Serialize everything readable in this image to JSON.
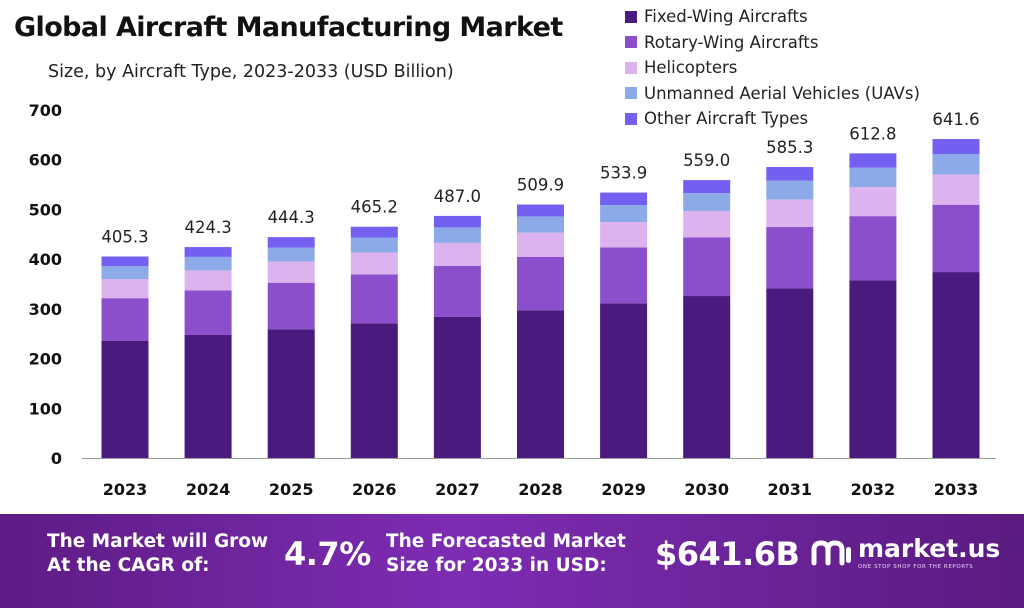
{
  "header": {
    "title": "Global Aircraft Manufacturing Market",
    "subtitle": "Size, by Aircraft Type, 2023-2033 (USD Billion)"
  },
  "chart_data": {
    "type": "bar",
    "stacked": true,
    "title": "Global Aircraft Manufacturing Market",
    "subtitle": "Size, by Aircraft Type, 2023-2033 (USD Billion)",
    "xlabel": "",
    "ylabel": "",
    "ylim": [
      0,
      700
    ],
    "yticks": [
      "0",
      "100",
      "200",
      "300",
      "400",
      "500",
      "600",
      "700"
    ],
    "grid": false,
    "legend_position": "top-right",
    "categories": [
      "2023",
      "2024",
      "2025",
      "2026",
      "2027",
      "2028",
      "2029",
      "2030",
      "2031",
      "2032",
      "2033"
    ],
    "series": [
      {
        "name": "Fixed-Wing Aircrafts",
        "color": "#4b1a7e",
        "values": [
          236.0,
          247.5,
          259.0,
          271.0,
          283.7,
          297.2,
          311.2,
          325.8,
          341.1,
          357.2,
          374.0
        ]
      },
      {
        "name": "Rotary-Wing Aircrafts",
        "color": "#8c4fcb",
        "values": [
          85.5,
          89.4,
          93.6,
          98.2,
          102.7,
          107.5,
          112.5,
          117.9,
          123.5,
          129.3,
          135.4
        ]
      },
      {
        "name": "Helicopters",
        "color": "#dcb2ef",
        "values": [
          38.5,
          40.4,
          42.3,
          44.2,
          46.3,
          48.5,
          50.8,
          53.2,
          55.6,
          58.3,
          61.0
        ]
      },
      {
        "name": "Unmanned Aerial Vehicles (UAVs)",
        "color": "#8daae8",
        "values": [
          26.0,
          27.2,
          28.5,
          29.8,
          31.2,
          32.7,
          34.2,
          35.8,
          37.5,
          39.3,
          41.1
        ]
      },
      {
        "name": "Other Aircraft Types",
        "color": "#7360f0",
        "values": [
          19.3,
          19.8,
          20.9,
          22.0,
          23.1,
          24.0,
          25.2,
          26.3,
          27.6,
          28.7,
          30.1
        ]
      }
    ],
    "totals": [
      405.3,
      424.3,
      444.3,
      465.2,
      487.0,
      509.9,
      533.9,
      559.0,
      585.3,
      612.8,
      641.6
    ],
    "total_labels": [
      "405.3",
      "424.3",
      "444.3",
      "465.2",
      "487.0",
      "509.9",
      "533.9",
      "559.0",
      "585.3",
      "612.8",
      "641.6"
    ]
  },
  "banner": {
    "cagr_label_line1": "The Market will Grow",
    "cagr_label_line2": "At the CAGR of:",
    "cagr_value": "4.7%",
    "forecast_label_line1": "The Forecasted Market",
    "forecast_label_line2": "Size for 2033 in USD:",
    "forecast_value": "$641.6B",
    "brand_name": "market.us",
    "brand_tagline": "ONE STOP SHOP FOR THE REPORTS",
    "brand_icon": "market-us-logo-icon"
  },
  "colors": {
    "banner_start": "#5e1c85",
    "banner_end": "#5a1b80",
    "axis": "#999999"
  }
}
